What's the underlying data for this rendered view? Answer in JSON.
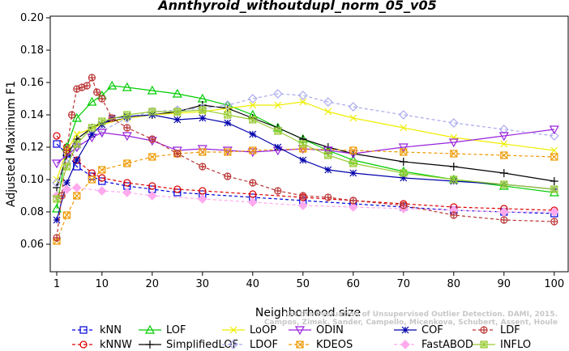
{
  "chart_data": {
    "type": "line",
    "title": "Annthyroid_withoutdupl_norm_05_v05",
    "xlabel": "Neighborhood size",
    "ylabel": "Adjusted Maximum F1",
    "xlim": [
      1,
      100
    ],
    "ylim": [
      0.05,
      0.2
    ],
    "xticks": [
      "1",
      "10",
      "20",
      "30",
      "40",
      "50",
      "60",
      "70",
      "80",
      "90",
      "100"
    ],
    "yticks": [
      "0.06",
      "0.08",
      "0.10",
      "0.12",
      "0.14",
      "0.16",
      "0.18",
      "0.20"
    ],
    "watermark": [
      "On the Evaluation of Unsupervised Outlier Detection. DAMI, 2015.",
      "Campos, Zimek, Sander, Campello, Micenkova, Schubert, Assent, Houle"
    ],
    "legend_position": "bottom",
    "series": [
      {
        "name": "kNN",
        "color": "#0000dd",
        "marker": "square",
        "dash": "4,3",
        "points": [
          [
            1,
            0.122
          ],
          [
            3,
            0.116
          ],
          [
            5,
            0.108
          ],
          [
            8,
            0.102
          ],
          [
            10,
            0.099
          ],
          [
            15,
            0.096
          ],
          [
            20,
            0.094
          ],
          [
            25,
            0.092
          ],
          [
            30,
            0.091
          ],
          [
            40,
            0.089
          ],
          [
            50,
            0.087
          ],
          [
            60,
            0.085
          ],
          [
            70,
            0.083
          ],
          [
            80,
            0.081
          ],
          [
            90,
            0.08
          ],
          [
            100,
            0.079
          ]
        ]
      },
      {
        "name": "kNNW",
        "color": "#dd0000",
        "marker": "circle",
        "dash": "4,3",
        "points": [
          [
            1,
            0.127
          ],
          [
            3,
            0.12
          ],
          [
            5,
            0.112
          ],
          [
            8,
            0.104
          ],
          [
            10,
            0.101
          ],
          [
            15,
            0.098
          ],
          [
            20,
            0.096
          ],
          [
            25,
            0.094
          ],
          [
            30,
            0.093
          ],
          [
            40,
            0.091
          ],
          [
            50,
            0.089
          ],
          [
            60,
            0.087
          ],
          [
            70,
            0.085
          ],
          [
            80,
            0.083
          ],
          [
            90,
            0.082
          ],
          [
            100,
            0.081
          ]
        ]
      },
      {
        "name": "LOF",
        "color": "#00cc00",
        "marker": "triangle-up",
        "dash": "",
        "points": [
          [
            1,
            0.082
          ],
          [
            3,
            0.12
          ],
          [
            5,
            0.138
          ],
          [
            8,
            0.148
          ],
          [
            10,
            0.152
          ],
          [
            12,
            0.158
          ],
          [
            15,
            0.157
          ],
          [
            20,
            0.155
          ],
          [
            25,
            0.153
          ],
          [
            30,
            0.15
          ],
          [
            35,
            0.146
          ],
          [
            40,
            0.14
          ],
          [
            45,
            0.132
          ],
          [
            50,
            0.125
          ],
          [
            55,
            0.118
          ],
          [
            60,
            0.112
          ],
          [
            70,
            0.105
          ],
          [
            80,
            0.1
          ],
          [
            90,
            0.096
          ],
          [
            100,
            0.092
          ]
        ]
      },
      {
        "name": "SimplifiedLOF",
        "color": "#000000",
        "marker": "plus",
        "dash": "",
        "points": [
          [
            1,
            0.095
          ],
          [
            3,
            0.115
          ],
          [
            5,
            0.125
          ],
          [
            8,
            0.132
          ],
          [
            10,
            0.135
          ],
          [
            15,
            0.138
          ],
          [
            20,
            0.14
          ],
          [
            25,
            0.142
          ],
          [
            30,
            0.146
          ],
          [
            35,
            0.144
          ],
          [
            40,
            0.138
          ],
          [
            45,
            0.132
          ],
          [
            50,
            0.125
          ],
          [
            55,
            0.12
          ],
          [
            60,
            0.116
          ],
          [
            70,
            0.111
          ],
          [
            80,
            0.108
          ],
          [
            90,
            0.104
          ],
          [
            100,
            0.099
          ]
        ]
      },
      {
        "name": "LoOP",
        "color": "#eeee00",
        "marker": "x",
        "dash": "",
        "points": [
          [
            1,
            0.1
          ],
          [
            3,
            0.118
          ],
          [
            5,
            0.128
          ],
          [
            10,
            0.134
          ],
          [
            15,
            0.138
          ],
          [
            20,
            0.14
          ],
          [
            25,
            0.141
          ],
          [
            30,
            0.142
          ],
          [
            35,
            0.144
          ],
          [
            40,
            0.146
          ],
          [
            45,
            0.146
          ],
          [
            50,
            0.148
          ],
          [
            55,
            0.142
          ],
          [
            60,
            0.138
          ],
          [
            70,
            0.132
          ],
          [
            80,
            0.126
          ],
          [
            90,
            0.122
          ],
          [
            100,
            0.118
          ]
        ]
      },
      {
        "name": "LDOF",
        "color": "#aaaaee",
        "marker": "diamond",
        "dash": "4,3",
        "points": [
          [
            1,
            0.098
          ],
          [
            3,
            0.11
          ],
          [
            5,
            0.12
          ],
          [
            10,
            0.13
          ],
          [
            15,
            0.138
          ],
          [
            20,
            0.142
          ],
          [
            25,
            0.143
          ],
          [
            30,
            0.144
          ],
          [
            35,
            0.146
          ],
          [
            40,
            0.15
          ],
          [
            45,
            0.153
          ],
          [
            50,
            0.152
          ],
          [
            55,
            0.148
          ],
          [
            60,
            0.145
          ],
          [
            70,
            0.14
          ],
          [
            80,
            0.135
          ],
          [
            90,
            0.131
          ],
          [
            100,
            0.127
          ]
        ]
      },
      {
        "name": "ODIN",
        "color": "#9922dd",
        "marker": "triangle-down",
        "dash": "",
        "points": [
          [
            1,
            0.11
          ],
          [
            5,
            0.12
          ],
          [
            8,
            0.126
          ],
          [
            10,
            0.129
          ],
          [
            15,
            0.127
          ],
          [
            20,
            0.124
          ],
          [
            25,
            0.118
          ],
          [
            30,
            0.119
          ],
          [
            35,
            0.118
          ],
          [
            40,
            0.117
          ],
          [
            45,
            0.118
          ],
          [
            50,
            0.119
          ],
          [
            55,
            0.118
          ],
          [
            60,
            0.116
          ],
          [
            70,
            0.12
          ],
          [
            80,
            0.123
          ],
          [
            90,
            0.127
          ],
          [
            100,
            0.131
          ]
        ]
      },
      {
        "name": "KDEOS",
        "color": "#ee9900",
        "marker": "square-x",
        "dash": "4,3",
        "points": [
          [
            1,
            0.062
          ],
          [
            3,
            0.078
          ],
          [
            5,
            0.09
          ],
          [
            8,
            0.1
          ],
          [
            10,
            0.106
          ],
          [
            15,
            0.11
          ],
          [
            20,
            0.114
          ],
          [
            25,
            0.116
          ],
          [
            30,
            0.117
          ],
          [
            35,
            0.117
          ],
          [
            40,
            0.118
          ],
          [
            50,
            0.119
          ],
          [
            60,
            0.118
          ],
          [
            70,
            0.117
          ],
          [
            80,
            0.116
          ],
          [
            90,
            0.115
          ],
          [
            100,
            0.114
          ]
        ]
      },
      {
        "name": "COF",
        "color": "#0000aa",
        "marker": "asterisk",
        "dash": "",
        "points": [
          [
            1,
            0.075
          ],
          [
            3,
            0.098
          ],
          [
            5,
            0.112
          ],
          [
            8,
            0.128
          ],
          [
            10,
            0.134
          ],
          [
            12,
            0.138
          ],
          [
            15,
            0.139
          ],
          [
            20,
            0.14
          ],
          [
            25,
            0.137
          ],
          [
            30,
            0.138
          ],
          [
            35,
            0.135
          ],
          [
            40,
            0.128
          ],
          [
            45,
            0.12
          ],
          [
            50,
            0.112
          ],
          [
            55,
            0.106
          ],
          [
            60,
            0.104
          ],
          [
            70,
            0.101
          ],
          [
            80,
            0.099
          ],
          [
            90,
            0.097
          ],
          [
            100,
            0.094
          ]
        ]
      },
      {
        "name": "FastABOD",
        "color": "#ffaaee",
        "marker": "diamond-filled",
        "dash": "4,3",
        "points": [
          [
            1,
            0.09
          ],
          [
            3,
            0.094
          ],
          [
            5,
            0.095
          ],
          [
            10,
            0.093
          ],
          [
            15,
            0.092
          ],
          [
            20,
            0.09
          ],
          [
            30,
            0.088
          ],
          [
            40,
            0.086
          ],
          [
            50,
            0.084
          ],
          [
            60,
            0.083
          ],
          [
            70,
            0.082
          ],
          [
            80,
            0.081
          ],
          [
            90,
            0.08
          ],
          [
            100,
            0.08
          ]
        ]
      },
      {
        "name": "LDF",
        "color": "#bb3333",
        "marker": "circle-plus",
        "dash": "4,3",
        "points": [
          [
            1,
            0.064
          ],
          [
            2,
            0.09
          ],
          [
            3,
            0.118
          ],
          [
            4,
            0.14
          ],
          [
            5,
            0.156
          ],
          [
            6,
            0.157
          ],
          [
            7,
            0.158
          ],
          [
            8,
            0.163
          ],
          [
            9,
            0.154
          ],
          [
            10,
            0.15
          ],
          [
            12,
            0.138
          ],
          [
            15,
            0.132
          ],
          [
            20,
            0.125
          ],
          [
            25,
            0.116
          ],
          [
            30,
            0.108
          ],
          [
            35,
            0.102
          ],
          [
            40,
            0.098
          ],
          [
            45,
            0.093
          ],
          [
            50,
            0.09
          ],
          [
            55,
            0.089
          ],
          [
            60,
            0.087
          ],
          [
            70,
            0.084
          ],
          [
            80,
            0.078
          ],
          [
            90,
            0.075
          ],
          [
            100,
            0.074
          ]
        ]
      },
      {
        "name": "INFLO",
        "color": "#99cc33",
        "marker": "square-star",
        "dash": "",
        "points": [
          [
            1,
            0.088
          ],
          [
            3,
            0.108
          ],
          [
            5,
            0.122
          ],
          [
            8,
            0.132
          ],
          [
            10,
            0.136
          ],
          [
            15,
            0.14
          ],
          [
            20,
            0.142
          ],
          [
            25,
            0.142
          ],
          [
            30,
            0.143
          ],
          [
            35,
            0.14
          ],
          [
            40,
            0.137
          ],
          [
            45,
            0.13
          ],
          [
            50,
            0.122
          ],
          [
            55,
            0.115
          ],
          [
            60,
            0.11
          ],
          [
            70,
            0.104
          ],
          [
            80,
            0.1
          ],
          [
            90,
            0.097
          ],
          [
            100,
            0.094
          ]
        ]
      }
    ]
  }
}
